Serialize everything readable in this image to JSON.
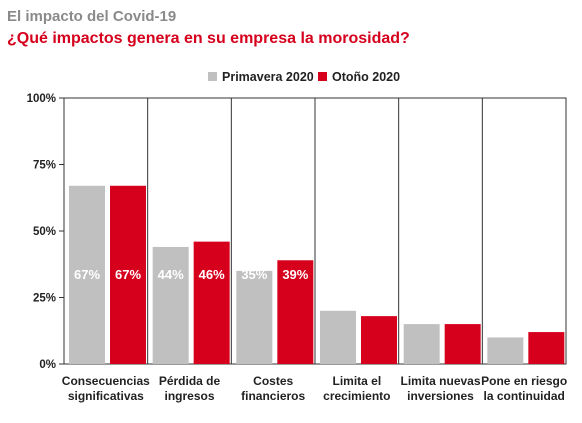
{
  "header": {
    "supertitle": "El impacto del Covid-19",
    "title": "¿Qué impactos genera en su empresa la morosidad?"
  },
  "colors": {
    "series_0": "#c0c0c0",
    "series_1": "#d6001c",
    "title": "#d6001c",
    "supertitle": "#8a8a8a"
  },
  "chart_data": {
    "type": "bar",
    "title": "¿Qué impactos genera en su empresa la morosidad?",
    "xlabel": "",
    "ylabel": "",
    "ylim": [
      0,
      100
    ],
    "yticks": [
      0,
      25,
      50,
      75,
      100
    ],
    "ytick_labels": [
      "0%",
      "25%",
      "50%",
      "75%",
      "100%"
    ],
    "grid": false,
    "legend_position": "top-right",
    "categories": [
      [
        "Consecuencias",
        "significativas"
      ],
      [
        "Pérdida de",
        "ingresos"
      ],
      [
        "Costes",
        "financieros"
      ],
      [
        "Limita el",
        "crecimiento"
      ],
      [
        "Limita nuevas",
        "inversiones"
      ],
      [
        "Pone en riesgo",
        "la continuidad"
      ]
    ],
    "series": [
      {
        "name": "Primavera 2020",
        "color": "#c0c0c0",
        "values": [
          67,
          44,
          35,
          20,
          15,
          10
        ]
      },
      {
        "name": "Otoño 2020",
        "color": "#d6001c",
        "values": [
          67,
          46,
          39,
          18,
          15,
          12
        ]
      }
    ],
    "value_suffix": "%"
  }
}
